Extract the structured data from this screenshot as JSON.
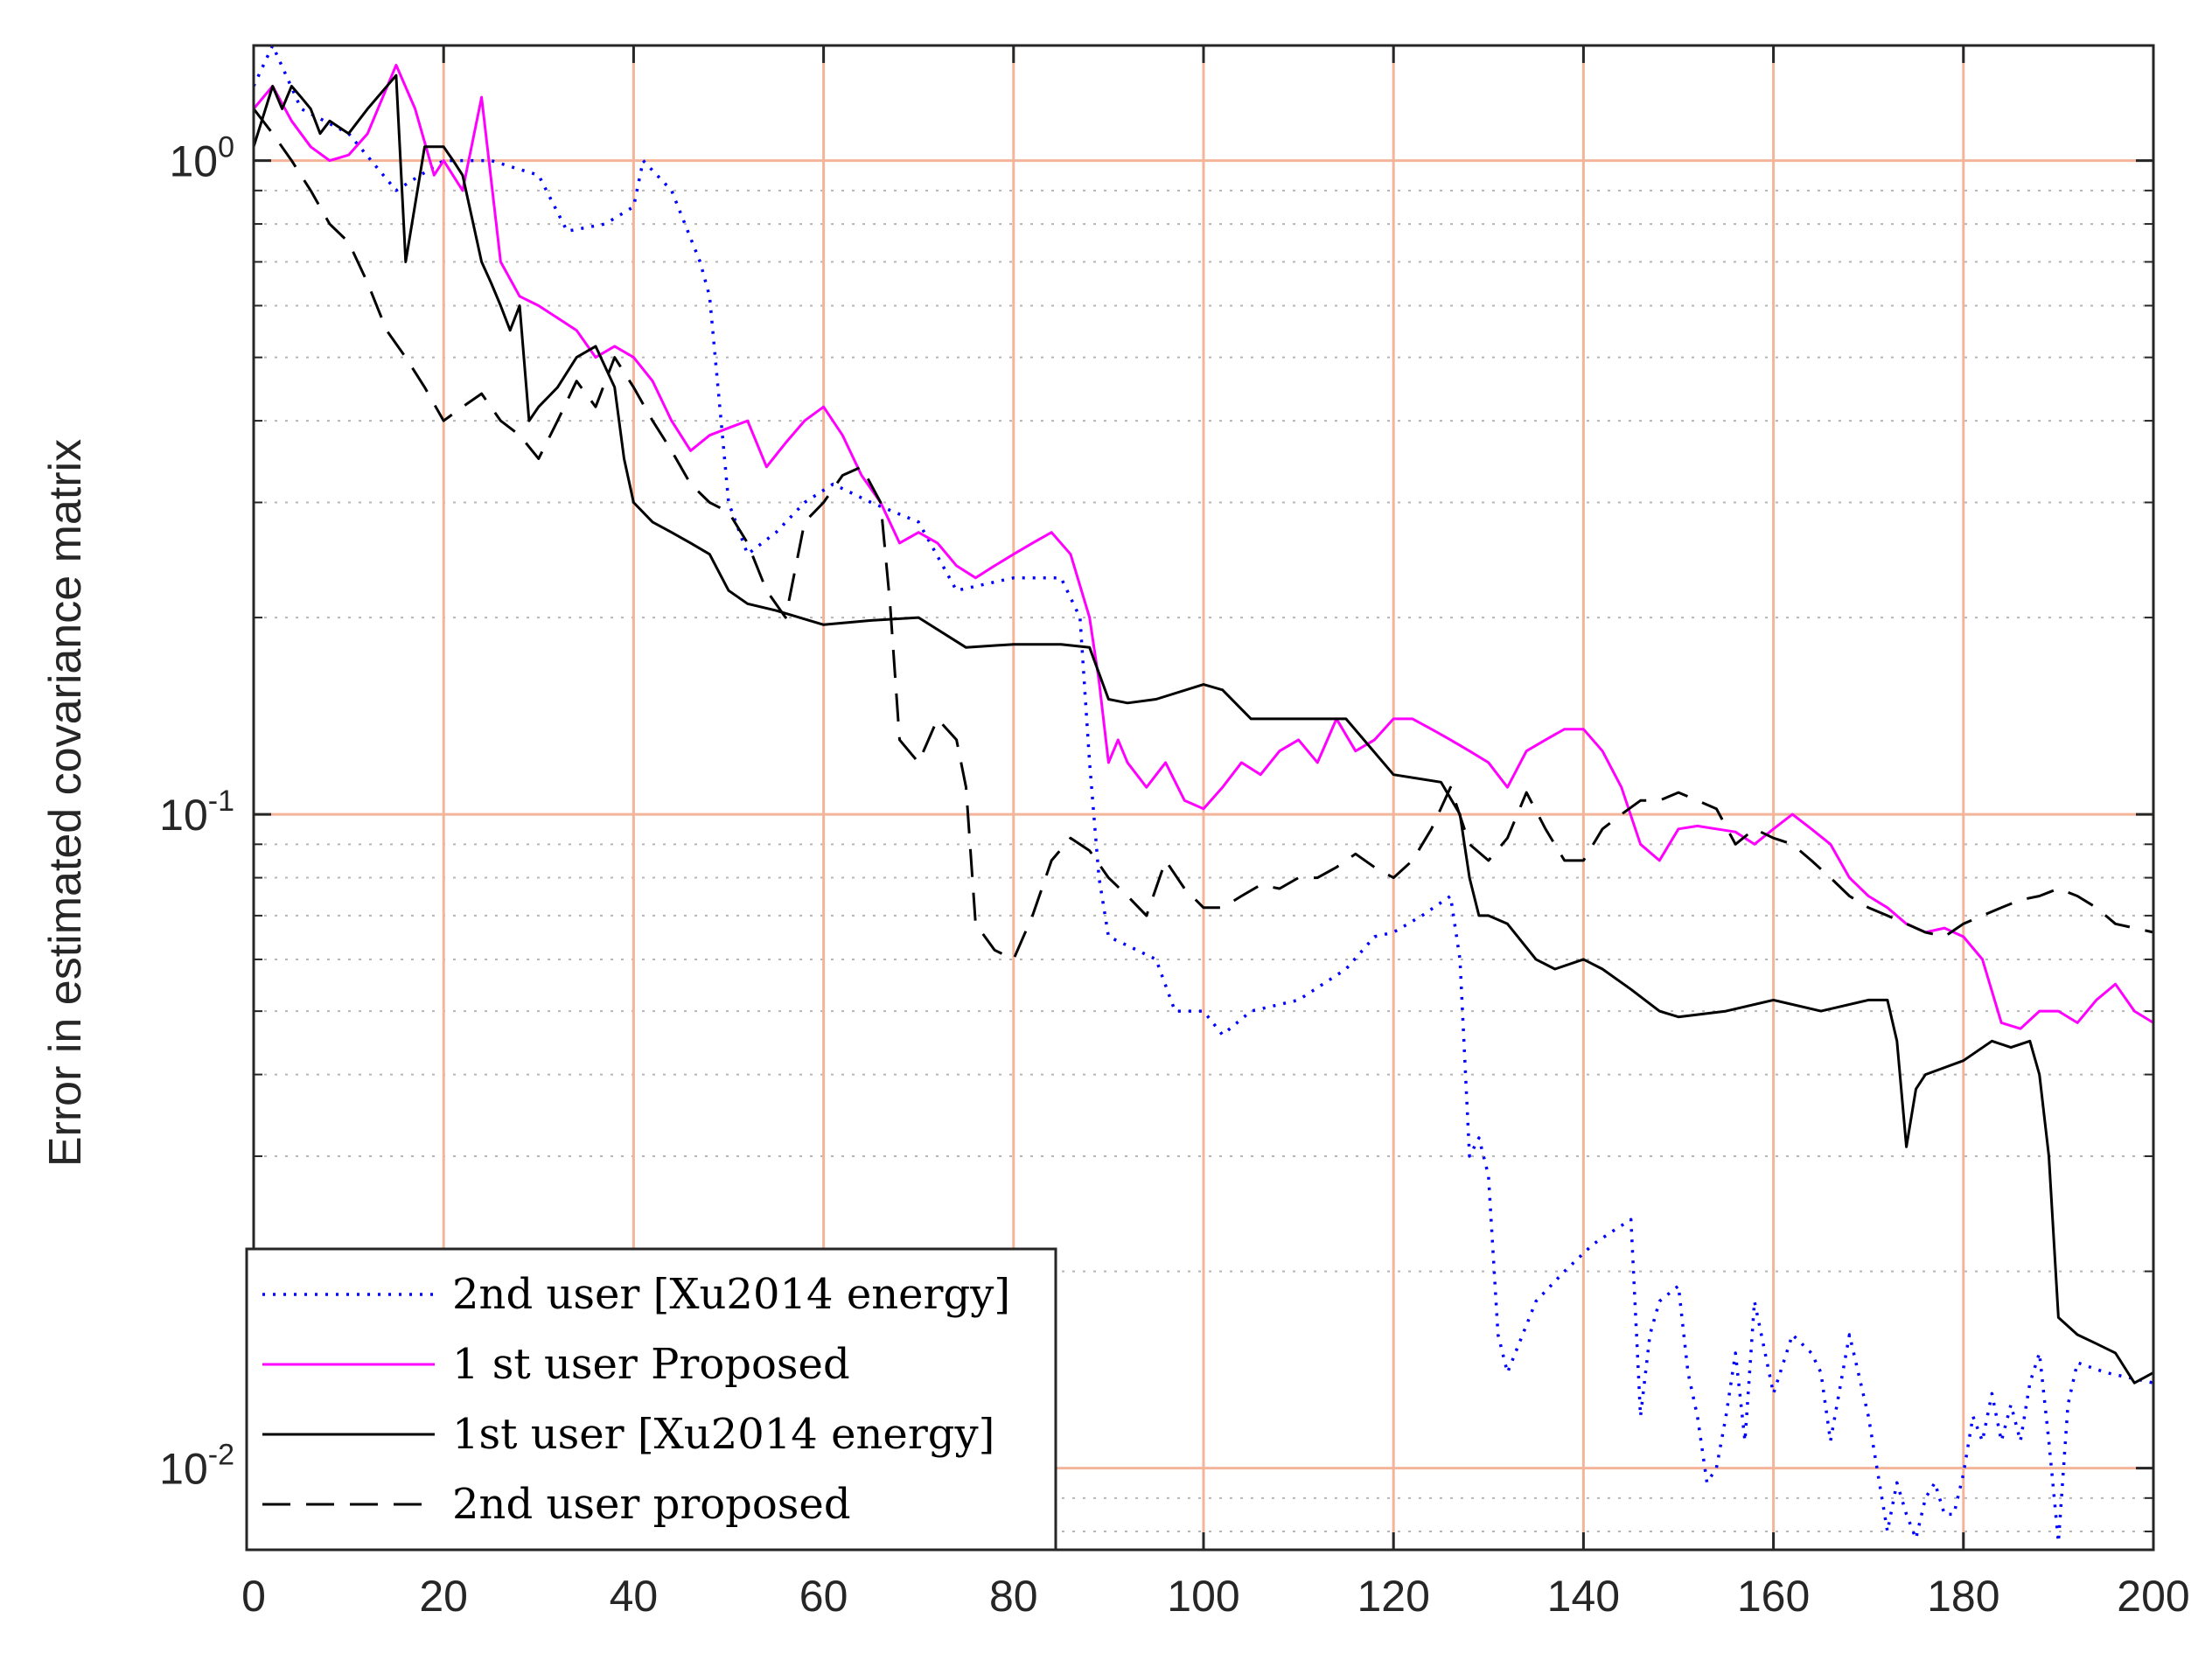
{
  "chart_data": {
    "type": "line",
    "title": "",
    "xlabel": "",
    "ylabel": "Error in estimated covariance matrix",
    "xlim": [
      0,
      200
    ],
    "ylim": [
      0.0075,
      1.5
    ],
    "yscale": "log",
    "grid": true,
    "minor_grid": true,
    "legend_position": "bottom-left",
    "grid_color": "#f4b49a",
    "x_ticks": [
      0,
      20,
      40,
      60,
      80,
      100,
      120,
      140,
      160,
      180,
      200
    ],
    "y_ticks": [
      {
        "value": 1,
        "base": "10",
        "exp": "0"
      },
      {
        "value": 0.1,
        "base": "10",
        "exp": "-1"
      },
      {
        "value": 0.01,
        "base": "10",
        "exp": "-2"
      }
    ],
    "series": [
      {
        "name": "2nd user [Xu2014 energy]",
        "color": "#0000ff",
        "dash": "dotted",
        "x": [
          0,
          2,
          5,
          10,
          15,
          20,
          25,
          30,
          33,
          37,
          40,
          41,
          44,
          47,
          48,
          50,
          52,
          55,
          58,
          61,
          65,
          70,
          74,
          80,
          85,
          87,
          88,
          89,
          90,
          92,
          95,
          97,
          100,
          102,
          105,
          110,
          115,
          118,
          120,
          123,
          126,
          127,
          128,
          129,
          130,
          131,
          132,
          135,
          138,
          141,
          143,
          145,
          146,
          147,
          148,
          150,
          151,
          152,
          153,
          154,
          155,
          156,
          157,
          158,
          160,
          162,
          164,
          165,
          166,
          168,
          170,
          172,
          173,
          174,
          175,
          176,
          177,
          178,
          179,
          180,
          181,
          182,
          183,
          184,
          185,
          186,
          187,
          188,
          189,
          190,
          191,
          192,
          195,
          200
        ],
        "values": [
          1.3,
          1.5,
          1.2,
          1.1,
          0.9,
          1.0,
          1.0,
          0.95,
          0.78,
          0.8,
          0.85,
          1.0,
          0.9,
          0.7,
          0.62,
          0.3,
          0.25,
          0.27,
          0.3,
          0.32,
          0.3,
          0.28,
          0.22,
          0.23,
          0.23,
          0.2,
          0.12,
          0.08,
          0.065,
          0.063,
          0.06,
          0.05,
          0.05,
          0.046,
          0.05,
          0.052,
          0.058,
          0.065,
          0.066,
          0.07,
          0.075,
          0.06,
          0.03,
          0.032,
          0.028,
          0.016,
          0.014,
          0.018,
          0.02,
          0.022,
          0.023,
          0.024,
          0.012,
          0.016,
          0.018,
          0.019,
          0.014,
          0.012,
          0.0095,
          0.01,
          0.012,
          0.015,
          0.011,
          0.018,
          0.013,
          0.016,
          0.015,
          0.014,
          0.011,
          0.016,
          0.012,
          0.008,
          0.0095,
          0.0085,
          0.0078,
          0.009,
          0.0095,
          0.0085,
          0.0085,
          0.0098,
          0.012,
          0.011,
          0.013,
          0.011,
          0.0125,
          0.011,
          0.0135,
          0.015,
          0.011,
          0.0077,
          0.0125,
          0.0145,
          0.014,
          0.0135
        ]
      },
      {
        "name": "1 st user Proposed",
        "color": "#ff00ff",
        "dash": "solid",
        "x": [
          0,
          2,
          4,
          6,
          8,
          10,
          12,
          15,
          17,
          19,
          20,
          22,
          24,
          26,
          28,
          30,
          34,
          36,
          38,
          40,
          42,
          44,
          46,
          48,
          50,
          52,
          54,
          56,
          58,
          60,
          62,
          64,
          66,
          68,
          70,
          72,
          74,
          76,
          78,
          80,
          82,
          84,
          86,
          88,
          89,
          90,
          91,
          92,
          94,
          96,
          98,
          100,
          102,
          104,
          106,
          108,
          110,
          112,
          114,
          116,
          118,
          120,
          122,
          124,
          126,
          128,
          130,
          132,
          134,
          136,
          138,
          140,
          142,
          144,
          146,
          148,
          150,
          152,
          154,
          156,
          158,
          160,
          162,
          164,
          166,
          168,
          170,
          172,
          174,
          176,
          178,
          180,
          182,
          184,
          186,
          188,
          190,
          192,
          194,
          196,
          198,
          200
        ],
        "values": [
          1.2,
          1.3,
          1.15,
          1.05,
          1.0,
          1.02,
          1.1,
          1.4,
          1.2,
          0.95,
          1.0,
          0.9,
          1.25,
          0.7,
          0.62,
          0.6,
          0.55,
          0.5,
          0.52,
          0.5,
          0.46,
          0.4,
          0.36,
          0.38,
          0.39,
          0.4,
          0.34,
          0.37,
          0.4,
          0.42,
          0.38,
          0.33,
          0.3,
          0.26,
          0.27,
          0.26,
          0.24,
          0.23,
          0.24,
          0.25,
          0.26,
          0.27,
          0.25,
          0.2,
          0.16,
          0.12,
          0.13,
          0.12,
          0.11,
          0.12,
          0.105,
          0.102,
          0.11,
          0.12,
          0.115,
          0.125,
          0.13,
          0.12,
          0.14,
          0.125,
          0.13,
          0.14,
          0.14,
          0.135,
          0.13,
          0.125,
          0.12,
          0.11,
          0.125,
          0.13,
          0.135,
          0.135,
          0.125,
          0.11,
          0.09,
          0.085,
          0.095,
          0.096,
          0.095,
          0.094,
          0.09,
          0.095,
          0.1,
          0.095,
          0.09,
          0.08,
          0.075,
          0.072,
          0.068,
          0.066,
          0.067,
          0.065,
          0.06,
          0.048,
          0.047,
          0.05,
          0.05,
          0.048,
          0.052,
          0.055,
          0.05,
          0.048
        ]
      },
      {
        "name": "1st user [Xu2014 energy]",
        "color": "#000000",
        "dash": "solid",
        "x": [
          0,
          2,
          3,
          4,
          5,
          6,
          7,
          8,
          10,
          12,
          15,
          16,
          18,
          20,
          21,
          22,
          24,
          25,
          26,
          27,
          28,
          29,
          30,
          32,
          34,
          36,
          38,
          39,
          40,
          42,
          44,
          46,
          48,
          50,
          52,
          55,
          60,
          65,
          70,
          75,
          80,
          85,
          88,
          90,
          92,
          95,
          100,
          102,
          105,
          110,
          115,
          120,
          125,
          127,
          128,
          129,
          130,
          132,
          135,
          137,
          140,
          142,
          145,
          148,
          150,
          155,
          160,
          165,
          170,
          172,
          173,
          174,
          175,
          176,
          180,
          183,
          185,
          187,
          188,
          189,
          190,
          192,
          194,
          196,
          198,
          200
        ],
        "values": [
          1.05,
          1.3,
          1.2,
          1.3,
          1.25,
          1.2,
          1.1,
          1.15,
          1.1,
          1.2,
          1.35,
          0.7,
          1.05,
          1.05,
          1.0,
          0.95,
          0.7,
          0.65,
          0.6,
          0.55,
          0.6,
          0.4,
          0.42,
          0.45,
          0.5,
          0.52,
          0.45,
          0.35,
          0.3,
          0.28,
          0.27,
          0.26,
          0.25,
          0.22,
          0.21,
          0.205,
          0.195,
          0.198,
          0.2,
          0.18,
          0.182,
          0.182,
          0.18,
          0.15,
          0.148,
          0.15,
          0.158,
          0.155,
          0.14,
          0.14,
          0.14,
          0.115,
          0.112,
          0.1,
          0.08,
          0.07,
          0.07,
          0.068,
          0.06,
          0.058,
          0.06,
          0.058,
          0.054,
          0.05,
          0.049,
          0.05,
          0.052,
          0.05,
          0.052,
          0.052,
          0.045,
          0.031,
          0.038,
          0.04,
          0.042,
          0.045,
          0.044,
          0.045,
          0.04,
          0.03,
          0.017,
          0.016,
          0.0155,
          0.015,
          0.0135,
          0.014
        ]
      },
      {
        "name": "2nd user proposed",
        "color": "#000000",
        "dash": "dashed",
        "x": [
          0,
          2,
          4,
          6,
          8,
          10,
          12,
          14,
          16,
          18,
          20,
          22,
          24,
          26,
          28,
          30,
          32,
          34,
          36,
          38,
          40,
          42,
          44,
          46,
          48,
          50,
          52,
          54,
          56,
          58,
          60,
          62,
          64,
          66,
          67,
          68,
          70,
          72,
          74,
          75,
          76,
          78,
          80,
          82,
          84,
          86,
          88,
          90,
          92,
          94,
          96,
          98,
          100,
          102,
          104,
          106,
          108,
          110,
          112,
          114,
          116,
          118,
          120,
          122,
          124,
          126,
          128,
          130,
          132,
          134,
          136,
          138,
          140,
          142,
          144,
          146,
          148,
          150,
          152,
          154,
          156,
          158,
          160,
          162,
          164,
          166,
          168,
          170,
          172,
          174,
          176,
          178,
          180,
          182,
          184,
          186,
          188,
          190,
          192,
          194,
          196,
          198,
          200
        ],
        "values": [
          1.2,
          1.1,
          1.0,
          0.9,
          0.8,
          0.75,
          0.65,
          0.55,
          0.5,
          0.45,
          0.4,
          0.42,
          0.44,
          0.4,
          0.38,
          0.35,
          0.4,
          0.46,
          0.42,
          0.5,
          0.45,
          0.4,
          0.36,
          0.32,
          0.3,
          0.29,
          0.26,
          0.22,
          0.2,
          0.28,
          0.3,
          0.33,
          0.34,
          0.3,
          0.21,
          0.13,
          0.12,
          0.14,
          0.13,
          0.11,
          0.068,
          0.062,
          0.06,
          0.07,
          0.085,
          0.092,
          0.088,
          0.08,
          0.075,
          0.07,
          0.085,
          0.077,
          0.072,
          0.072,
          0.075,
          0.078,
          0.077,
          0.08,
          0.08,
          0.083,
          0.087,
          0.083,
          0.08,
          0.085,
          0.095,
          0.11,
          0.09,
          0.085,
          0.092,
          0.108,
          0.095,
          0.085,
          0.085,
          0.095,
          0.1,
          0.105,
          0.105,
          0.108,
          0.105,
          0.102,
          0.09,
          0.095,
          0.092,
          0.09,
          0.085,
          0.08,
          0.075,
          0.072,
          0.07,
          0.068,
          0.066,
          0.065,
          0.068,
          0.07,
          0.072,
          0.074,
          0.075,
          0.077,
          0.075,
          0.072,
          0.068,
          0.067,
          0.066
        ]
      }
    ]
  }
}
